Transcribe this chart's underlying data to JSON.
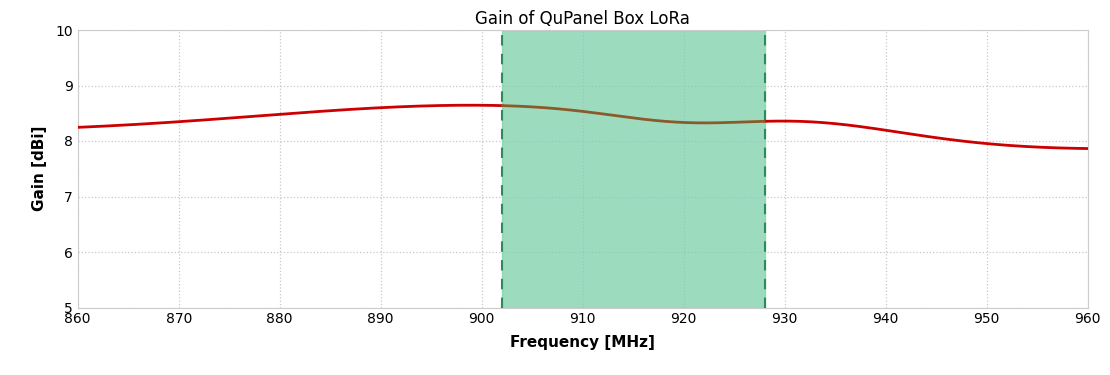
{
  "title": "Gain of QuPanel Box LoRa",
  "xlabel": "Frequency [MHz]",
  "ylabel": "Gain [dBi]",
  "xlim": [
    860,
    960
  ],
  "ylim": [
    5,
    10
  ],
  "xticks": [
    860,
    870,
    880,
    890,
    900,
    910,
    920,
    930,
    940,
    950,
    960
  ],
  "yticks": [
    5,
    6,
    7,
    8,
    9,
    10
  ],
  "band_start": 902,
  "band_end": 928,
  "band_color": "#7dcfaa",
  "band_alpha": 0.75,
  "line_color_outside": "#cc0000",
  "line_color_inside": "#8B5A2B",
  "grid_color": "#c8c8c8",
  "background_color": "#ffffff",
  "title_fontsize": 12,
  "label_fontsize": 11,
  "tick_fontsize": 10
}
